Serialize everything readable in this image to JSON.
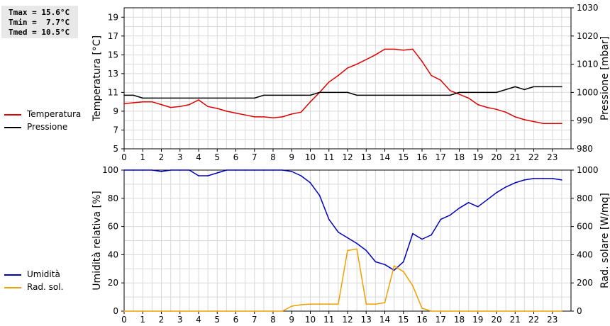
{
  "stats": {
    "tmax": "Tmax = 15.6°C",
    "tmin": "Tmin =  7.7°C",
    "tmed": "Tmed = 10.5°C"
  },
  "colors": {
    "temperature": "#dd0000",
    "pressure": "#000000",
    "humidity": "#0000bb",
    "solar": "#f0a000",
    "grid": "#d9d9d9"
  },
  "chart_data": [
    {
      "type": "line",
      "ylabel": "Temperatura [°C]",
      "y2label": "Pressione [mbar]",
      "xlim": [
        0,
        24
      ],
      "ylim": [
        5,
        20
      ],
      "y2lim": [
        980,
        1030
      ],
      "x_ticks": [
        0,
        1,
        2,
        3,
        4,
        5,
        6,
        7,
        8,
        9,
        10,
        11,
        12,
        13,
        14,
        15,
        16,
        17,
        18,
        19,
        20,
        21,
        22,
        23
      ],
      "y_ticks": [
        5,
        7,
        9,
        11,
        13,
        15,
        17,
        19
      ],
      "y2_ticks": [
        980,
        990,
        1000,
        1010,
        1020,
        1030
      ],
      "grid": true,
      "legend": "left",
      "series": [
        {
          "name": "Temperatura",
          "axis": "left",
          "color": "#dd0000",
          "x": [
            0,
            0.5,
            1,
            1.5,
            2,
            2.5,
            3,
            3.5,
            4,
            4.5,
            5,
            5.5,
            6,
            6.5,
            7,
            7.5,
            8,
            8.5,
            9,
            9.5,
            10,
            10.5,
            11,
            11.5,
            12,
            12.5,
            13,
            13.5,
            14,
            14.5,
            15,
            15.5,
            16,
            16.5,
            17,
            17.5,
            18,
            18.5,
            19,
            19.5,
            20,
            20.5,
            21,
            21.5,
            22,
            22.5,
            23,
            23.5
          ],
          "y": [
            9.8,
            9.9,
            10.0,
            10.0,
            9.7,
            9.4,
            9.5,
            9.7,
            10.2,
            9.5,
            9.3,
            9.0,
            8.8,
            8.6,
            8.4,
            8.4,
            8.3,
            8.4,
            8.7,
            8.9,
            10.0,
            11.0,
            12.1,
            12.8,
            13.6,
            14.0,
            14.5,
            15.0,
            15.6,
            15.6,
            15.5,
            15.6,
            14.3,
            12.8,
            12.3,
            11.2,
            10.8,
            10.4,
            9.7,
            9.4,
            9.2,
            8.9,
            8.4,
            8.1,
            7.9,
            7.7,
            7.7,
            7.7
          ]
        },
        {
          "name": "Pressione",
          "axis": "right",
          "color": "#000000",
          "x": [
            0,
            0.5,
            1,
            1.5,
            2,
            2.5,
            3,
            3.5,
            4,
            4.5,
            5,
            5.5,
            6,
            6.5,
            7,
            7.5,
            8,
            8.5,
            9,
            9.5,
            10,
            10.5,
            11,
            11.5,
            12,
            12.5,
            13,
            13.5,
            14,
            14.5,
            15,
            15.5,
            16,
            16.5,
            17,
            17.5,
            18,
            18.5,
            19,
            19.5,
            20,
            20.5,
            21,
            21.5,
            22,
            22.5,
            23,
            23.5
          ],
          "y": [
            999,
            999,
            998,
            998,
            998,
            998,
            998,
            998,
            998,
            998,
            998,
            998,
            998,
            998,
            998,
            999,
            999,
            999,
            999,
            999,
            999,
            1000,
            1000,
            1000,
            1000,
            999,
            999,
            999,
            999,
            999,
            999,
            999,
            999,
            999,
            999,
            999,
            1000,
            1000,
            1000,
            1000,
            1000,
            1001,
            1002,
            1001,
            1002,
            1002,
            1002,
            1002
          ]
        }
      ]
    },
    {
      "type": "line",
      "ylabel": "Umidità relativa [%]",
      "y2label": "Rad. solare [W/mq]",
      "xlim": [
        0,
        24
      ],
      "ylim": [
        0,
        100
      ],
      "y2lim": [
        0,
        1000
      ],
      "x_ticks": [
        0,
        1,
        2,
        3,
        4,
        5,
        6,
        7,
        8,
        9,
        10,
        11,
        12,
        13,
        14,
        15,
        16,
        17,
        18,
        19,
        20,
        21,
        22,
        23
      ],
      "y_ticks": [
        0,
        20,
        40,
        60,
        80,
        100
      ],
      "y2_ticks": [
        0,
        200,
        400,
        600,
        800,
        1000
      ],
      "grid": true,
      "legend": "left",
      "series": [
        {
          "name": "Umidità",
          "axis": "left",
          "color": "#0000bb",
          "x": [
            0,
            0.5,
            1,
            1.5,
            2,
            2.5,
            3,
            3.5,
            4,
            4.5,
            5,
            5.5,
            6,
            6.5,
            7,
            7.5,
            8,
            8.5,
            9,
            9.5,
            10,
            10.5,
            11,
            11.5,
            12,
            12.5,
            13,
            13.5,
            14,
            14.5,
            15,
            15.5,
            16,
            16.5,
            17,
            17.5,
            18,
            18.5,
            19,
            19.5,
            20,
            20.5,
            21,
            21.5,
            22,
            22.5,
            23,
            23.5
          ],
          "y": [
            100,
            100,
            100,
            100,
            99,
            100,
            100,
            100,
            96,
            96,
            98,
            100,
            100,
            100,
            100,
            100,
            100,
            100,
            99,
            96,
            91,
            82,
            65,
            56,
            52,
            48,
            43,
            35,
            33,
            29,
            35,
            55,
            51,
            54,
            65,
            68,
            73,
            77,
            74,
            79,
            84,
            88,
            91,
            93,
            94,
            94,
            94,
            93
          ]
        },
        {
          "name": "Rad. sol.",
          "axis": "right",
          "color": "#f0a000",
          "x": [
            0,
            0.5,
            1,
            1.5,
            2,
            2.5,
            3,
            3.5,
            4,
            4.5,
            5,
            5.5,
            6,
            6.5,
            7,
            7.5,
            8,
            8.5,
            9,
            9.5,
            10,
            10.5,
            11,
            11.5,
            12,
            12.5,
            13,
            13.5,
            14,
            14.5,
            15,
            15.5,
            16,
            16.5,
            17,
            17.5,
            18,
            18.5,
            19,
            19.5,
            20,
            20.5,
            21,
            21.5,
            22,
            22.5,
            23,
            23.5
          ],
          "y": [
            0,
            0,
            0,
            0,
            0,
            0,
            0,
            0,
            0,
            0,
            0,
            0,
            0,
            0,
            0,
            0,
            0,
            0,
            35,
            45,
            50,
            50,
            50,
            50,
            430,
            440,
            50,
            50,
            60,
            320,
            280,
            180,
            20,
            0,
            0,
            0,
            0,
            0,
            0,
            0,
            0,
            0,
            0,
            0,
            0,
            0,
            0,
            0
          ]
        }
      ]
    }
  ]
}
